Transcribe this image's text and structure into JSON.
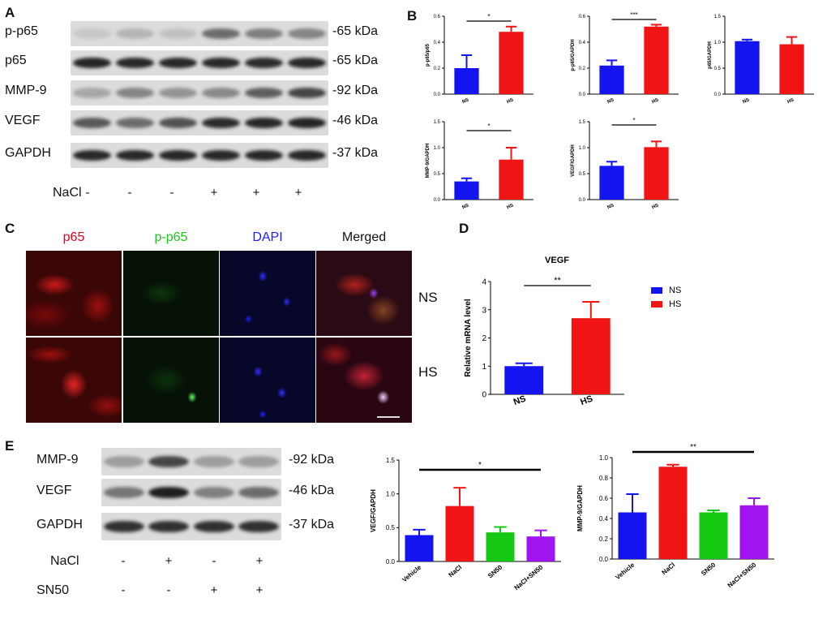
{
  "panels": {
    "A": {
      "letter": "A",
      "rows": [
        {
          "label": "p-p65",
          "kda": "-65 kDa",
          "bands": [
            0.08,
            0.18,
            0.12,
            0.55,
            0.45,
            0.42
          ]
        },
        {
          "label": "p65",
          "kda": "-65 kDa",
          "bands": [
            0.92,
            0.9,
            0.9,
            0.9,
            0.88,
            0.9
          ]
        },
        {
          "label": "MMP-9",
          "kda": "-92 kDa",
          "bands": [
            0.25,
            0.42,
            0.35,
            0.4,
            0.62,
            0.75
          ]
        },
        {
          "label": "VEGF",
          "kda": "-46 kDa",
          "bands": [
            0.65,
            0.55,
            0.68,
            0.88,
            0.9,
            0.92
          ]
        },
        {
          "label": "GAPDH",
          "kda": "-37 kDa",
          "bands": [
            0.9,
            0.9,
            0.9,
            0.9,
            0.9,
            0.9
          ]
        }
      ],
      "treatment_label": "NaCl",
      "treatment_signs": [
        "-",
        "-",
        "-",
        "+",
        "+",
        "+"
      ]
    },
    "B": {
      "letter": "B"
    },
    "C": {
      "letter": "C",
      "columns": [
        "p65",
        "p-p65",
        "DAPI",
        "Merged"
      ],
      "column_colors": [
        "#e8001c",
        "#22c422",
        "#1c1cff",
        "#111111"
      ],
      "rows": [
        "NS",
        "HS"
      ]
    },
    "D": {
      "letter": "D"
    },
    "E": {
      "letter": "E",
      "rows": [
        {
          "label": "MMP-9",
          "kda": "-92 kDa",
          "bands": [
            0.3,
            0.75,
            0.3,
            0.3
          ]
        },
        {
          "label": "VEGF",
          "kda": "-46 kDa",
          "bands": [
            0.5,
            0.95,
            0.45,
            0.55
          ]
        },
        {
          "label": "GAPDH",
          "kda": "-37 kDa",
          "bands": [
            0.85,
            0.85,
            0.85,
            0.85
          ]
        }
      ],
      "treatments": [
        {
          "label": "NaCl",
          "signs": [
            "-",
            "+",
            "-",
            "+"
          ]
        },
        {
          "label": "SN50",
          "signs": [
            "-",
            "-",
            "+",
            "+"
          ]
        }
      ]
    }
  },
  "colors": {
    "blue": "#1414f0",
    "red": "#f01414",
    "green": "#14c814",
    "purple": "#a014f0"
  },
  "chart_data": [
    {
      "id": "B1",
      "type": "bar",
      "categories": [
        "NS",
        "HS"
      ],
      "values": [
        0.2,
        0.48
      ],
      "errors": [
        0.1,
        0.04
      ],
      "ylabel": "p-p65/p65",
      "ylim": [
        0,
        0.6
      ],
      "yticks": [
        "0.0",
        "0.2",
        "0.4",
        "0.6"
      ],
      "sig": "*",
      "colors": [
        "#1414f0",
        "#f01414"
      ]
    },
    {
      "id": "B2",
      "type": "bar",
      "categories": [
        "NS",
        "HS"
      ],
      "values": [
        0.22,
        0.52
      ],
      "errors": [
        0.04,
        0.015
      ],
      "ylabel": "p-p65/GAPDH",
      "ylim": [
        0,
        0.6
      ],
      "yticks": [
        "0.0",
        "0.2",
        "0.4",
        "0.6"
      ],
      "sig": "***",
      "colors": [
        "#1414f0",
        "#f01414"
      ]
    },
    {
      "id": "B3",
      "type": "bar",
      "categories": [
        "NS",
        "HS"
      ],
      "values": [
        1.02,
        0.96
      ],
      "errors": [
        0.03,
        0.14
      ],
      "ylabel": "p65/GAPDH",
      "ylim": [
        0,
        1.5
      ],
      "yticks": [
        "0.0",
        "0.5",
        "1.0",
        "1.5"
      ],
      "sig": "",
      "colors": [
        "#1414f0",
        "#f01414"
      ]
    },
    {
      "id": "B4",
      "type": "bar",
      "categories": [
        "NS",
        "HS"
      ],
      "values": [
        0.35,
        0.77
      ],
      "errors": [
        0.06,
        0.23
      ],
      "ylabel": "MMP-9/GAPDH",
      "ylim": [
        0,
        1.5
      ],
      "yticks": [
        "0.0",
        "0.5",
        "1.0",
        "1.5"
      ],
      "sig": "*",
      "colors": [
        "#1414f0",
        "#f01414"
      ]
    },
    {
      "id": "B5",
      "type": "bar",
      "categories": [
        "NS",
        "HS"
      ],
      "values": [
        0.65,
        1.01
      ],
      "errors": [
        0.08,
        0.11
      ],
      "ylabel": "VEGF/GAPDH",
      "ylim": [
        0,
        1.5
      ],
      "yticks": [
        "0.0",
        "0.5",
        "1.0",
        "1.5"
      ],
      "sig": "*",
      "colors": [
        "#1414f0",
        "#f01414"
      ]
    },
    {
      "id": "D",
      "type": "bar",
      "title": "VEGF",
      "categories": [
        "NS",
        "HS"
      ],
      "values": [
        1.0,
        2.7
      ],
      "errors": [
        0.1,
        0.58
      ],
      "ylabel": "Relative mRNA level",
      "ylim": [
        0,
        4
      ],
      "yticks": [
        "0",
        "1",
        "2",
        "3",
        "4"
      ],
      "sig": "**",
      "colors": [
        "#1414f0",
        "#f01414"
      ],
      "legend": [
        "NS",
        "HS"
      ],
      "legend_position": "right"
    },
    {
      "id": "E1",
      "type": "bar",
      "categories": [
        "Vehicle",
        "NaCl",
        "SN50",
        "NaCl+SN50"
      ],
      "values": [
        0.39,
        0.82,
        0.43,
        0.37
      ],
      "errors": [
        0.08,
        0.27,
        0.08,
        0.09
      ],
      "ylabel": "VEGF/GAPDH",
      "ylim": [
        0,
        1.5
      ],
      "yticks": [
        "0.0",
        "0.5",
        "1.0",
        "1.5"
      ],
      "sig": "*",
      "colors": [
        "#1414f0",
        "#f01414",
        "#14c814",
        "#a014f0"
      ]
    },
    {
      "id": "E2",
      "type": "bar",
      "categories": [
        "Vehicle",
        "NaCl",
        "SN50",
        "NaCl+SN50"
      ],
      "values": [
        0.46,
        0.91,
        0.46,
        0.53
      ],
      "errors": [
        0.18,
        0.02,
        0.02,
        0.07
      ],
      "ylabel": "MMP-9/GAPDH",
      "ylim": [
        0,
        1.0
      ],
      "yticks": [
        "0.0",
        "0.2",
        "0.4",
        "0.6",
        "0.8",
        "1.0"
      ],
      "sig": "**",
      "colors": [
        "#1414f0",
        "#f01414",
        "#14c814",
        "#a014f0"
      ]
    }
  ]
}
